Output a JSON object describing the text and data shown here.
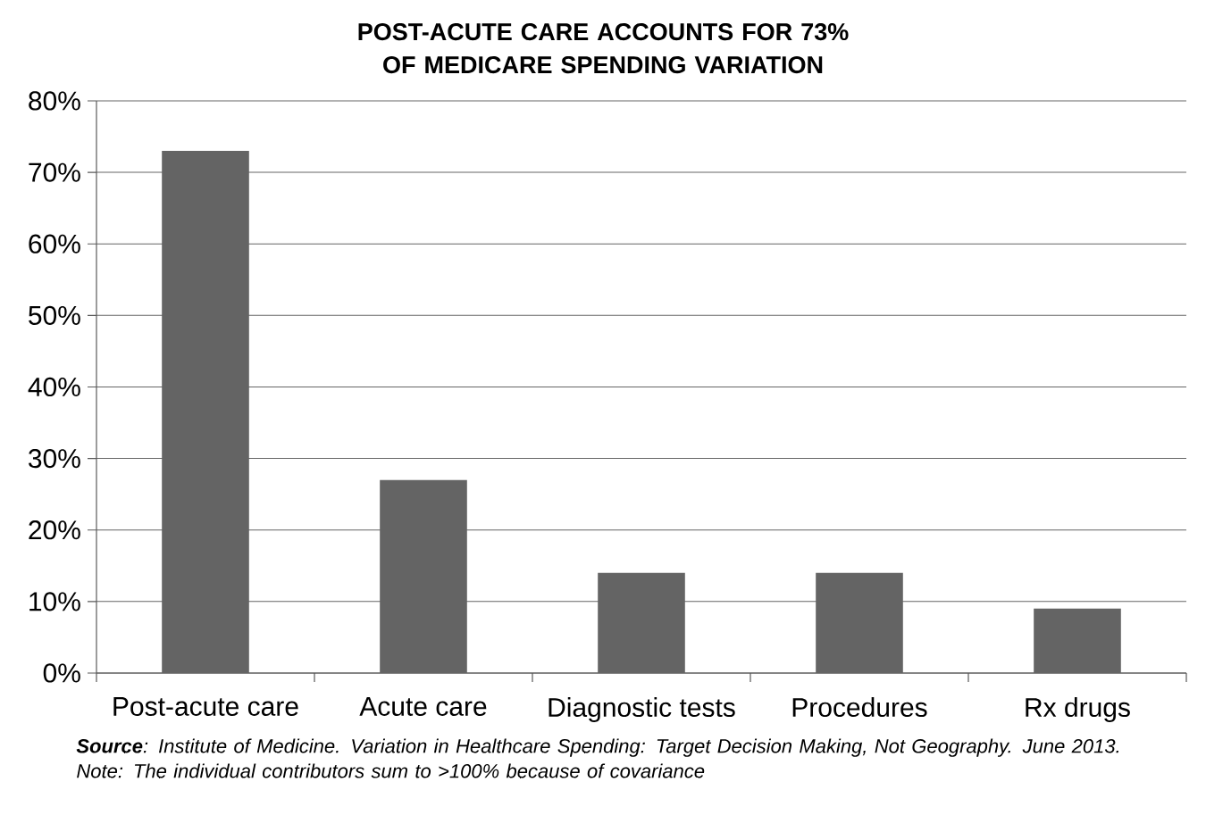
{
  "chart_data": {
    "type": "bar",
    "title": "POST-ACUTE CARE ACCOUNTS FOR 73% OF MEDICARE SPENDING VARIATION",
    "categories": [
      "Post-acute care",
      "Acute care",
      "Diagnostic tests",
      "Procedures",
      "Rx drugs"
    ],
    "values": [
      73,
      27,
      14,
      14,
      9
    ],
    "color": "#646464",
    "ylim": [
      0,
      80
    ],
    "yticks": [
      {
        "value": 0,
        "label": "0%"
      },
      {
        "value": 10,
        "label": "10%"
      },
      {
        "value": 20,
        "label": "20%"
      },
      {
        "value": 30,
        "label": "30%"
      },
      {
        "value": 40,
        "label": "40%"
      },
      {
        "value": 50,
        "label": "50%"
      },
      {
        "value": 60,
        "label": "60%"
      },
      {
        "value": 70,
        "label": "70%"
      },
      {
        "value": 80,
        "label": "80%"
      }
    ],
    "grid": "y",
    "annotations": [
      "**Source**: Institute of Medicine. Variation in Healthcare Spending: Target Decision Making, Not Geography. June 2013. Note: The individual contributors sum to >100% because of covariance"
    ]
  }
}
